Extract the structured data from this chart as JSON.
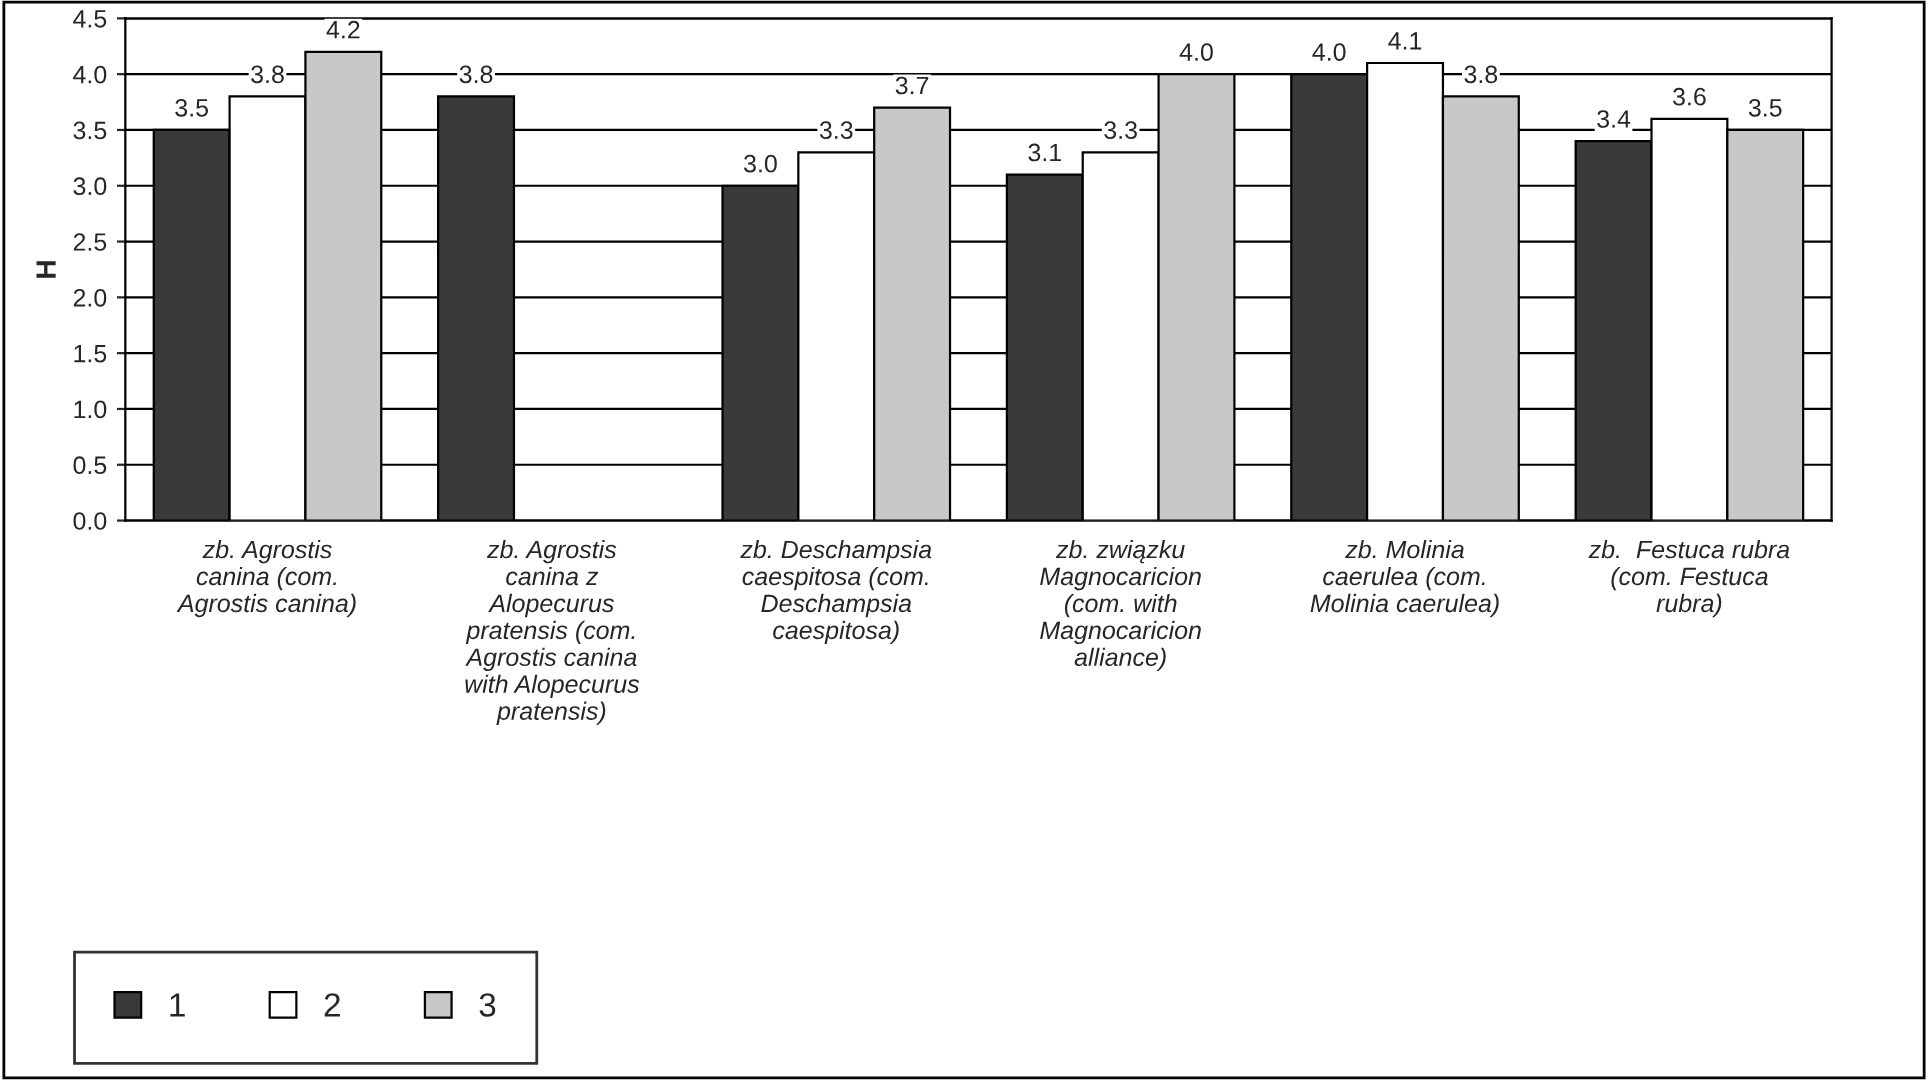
{
  "chart_data": {
    "type": "bar",
    "ylabel": "H",
    "categories": [
      "zb. Agrostis\ncanina (com.\nAgrostis canina)",
      "zb. Agrostis\ncanina z\nAlopecurus\npratensis (com.\nAgrostis canina\nwith Alopecurus\npratensis)",
      "zb. Deschampsia\ncaespitosa (com.\nDeschampsia\ncaespitosa)",
      "zb. związku\nMagnocaricion\n(com. with\nMagnocaricion\nalliance)",
      "zb. Molinia\ncaerulea (com.\nMolinia caerulea)",
      "zb.  Festuca rubra\n(com. Festuca\nrubra)"
    ],
    "series": [
      {
        "name": "1",
        "color": "#3a3a3a",
        "values": [
          3.5,
          3.8,
          3.0,
          3.1,
          4.0,
          3.4
        ],
        "value_labels": [
          "3.5",
          "3.8",
          "3.0",
          "3.1",
          "4.0",
          "3.4"
        ]
      },
      {
        "name": "2",
        "color": "#ffffff",
        "values": [
          3.8,
          null,
          3.3,
          3.3,
          4.1,
          3.6
        ],
        "value_labels": [
          "3.8",
          null,
          "3.3",
          "3.3",
          "4.1",
          "3.6"
        ]
      },
      {
        "name": "3",
        "color": "#c8c8c8",
        "values": [
          4.2,
          null,
          3.7,
          4.0,
          3.8,
          3.5
        ],
        "value_labels": [
          "4.2",
          null,
          "3.7",
          "4.0",
          "3.8",
          "3.5"
        ]
      }
    ],
    "ylim": [
      0,
      4.5
    ],
    "yticks": [
      {
        "value": 0,
        "label": "0.0"
      },
      {
        "value": 0.5,
        "label": "0.5"
      },
      {
        "value": 1,
        "label": "1.0"
      },
      {
        "value": 1.5,
        "label": "1.5"
      },
      {
        "value": 2,
        "label": "2.0"
      },
      {
        "value": 2.5,
        "label": "2.5"
      },
      {
        "value": 3,
        "label": "3.0"
      },
      {
        "value": 3.5,
        "label": "3.5"
      },
      {
        "value": 4,
        "label": "4.0"
      },
      {
        "value": 4.5,
        "label": "4.5"
      }
    ],
    "grid": "y",
    "legend": "bottom left"
  }
}
